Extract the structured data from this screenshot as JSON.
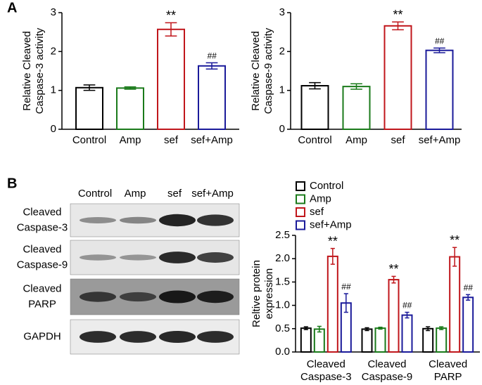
{
  "panels": [
    "A",
    "B"
  ],
  "blot": {
    "lanes": [
      "Control",
      "Amp",
      "sef",
      "sef+Amp"
    ],
    "rows": [
      [
        "Cleaved",
        "Caspase-3"
      ],
      [
        "Cleaved",
        "Caspase-9"
      ],
      [
        "Cleaved",
        "PARP"
      ],
      [
        "GAPDH"
      ]
    ]
  },
  "chart_data": [
    {
      "type": "bar",
      "ylabel": [
        "Relative Cleaved",
        "Caspase-3 activity"
      ],
      "categories": [
        "Control",
        "Amp",
        "sef",
        "sef+Amp"
      ],
      "values": [
        1.07,
        1.06,
        2.57,
        1.63
      ],
      "errors": [
        0.07,
        0.03,
        0.17,
        0.08
      ],
      "colors": [
        "#000000",
        "#1a7a1a",
        "#c0161b",
        "#1a1a9a"
      ],
      "annotations": [
        {
          "category": 2,
          "text": "**"
        },
        {
          "category": 3,
          "text": "##"
        }
      ],
      "ylim": [
        0,
        3
      ],
      "yticks": [
        0,
        1,
        2,
        3
      ]
    },
    {
      "type": "bar",
      "ylabel": [
        "Relative Cleaved",
        "Caspase-9 activity"
      ],
      "categories": [
        "Control",
        "Amp",
        "sef",
        "sef+Amp"
      ],
      "values": [
        1.12,
        1.1,
        2.66,
        2.03
      ],
      "errors": [
        0.08,
        0.07,
        0.1,
        0.06
      ],
      "colors": [
        "#000000",
        "#1a7a1a",
        "#c0161b",
        "#1a1a9a"
      ],
      "annotations": [
        {
          "category": 2,
          "text": "**"
        },
        {
          "category": 3,
          "text": "##"
        }
      ],
      "ylim": [
        0,
        3
      ],
      "yticks": [
        0,
        1,
        2,
        3
      ]
    },
    {
      "type": "grouped_bar",
      "ylabel": [
        "Reltive protein",
        "expression"
      ],
      "categories": [
        [
          "Cleaved",
          "Caspase-3"
        ],
        [
          "Cleaved",
          "Caspase-9"
        ],
        [
          "Cleaved",
          "PARP"
        ]
      ],
      "series": [
        {
          "name": "Control",
          "color": "#000000",
          "values": [
            0.51,
            0.49,
            0.5
          ],
          "errors": [
            0.03,
            0.03,
            0.04
          ]
        },
        {
          "name": "Amp",
          "color": "#1a7a1a",
          "values": [
            0.49,
            0.51,
            0.51
          ],
          "errors": [
            0.06,
            0.02,
            0.03
          ]
        },
        {
          "name": "sef",
          "color": "#c0161b",
          "values": [
            2.05,
            1.55,
            2.04
          ],
          "errors": [
            0.17,
            0.07,
            0.2
          ],
          "annotation": "**"
        },
        {
          "name": "sef+Amp",
          "color": "#1a1a9a",
          "values": [
            1.05,
            0.79,
            1.17
          ],
          "errors": [
            0.2,
            0.06,
            0.06
          ],
          "annotation": "##"
        }
      ],
      "ylim": [
        0,
        2.5
      ],
      "yticks": [
        {
          "value": 0,
          "label": "0.0"
        },
        0.5,
        {
          "value": 1,
          "label": "1.0"
        },
        1.5,
        {
          "value": 2,
          "label": "2.0"
        },
        2.5
      ],
      "legend": "top-left"
    }
  ]
}
